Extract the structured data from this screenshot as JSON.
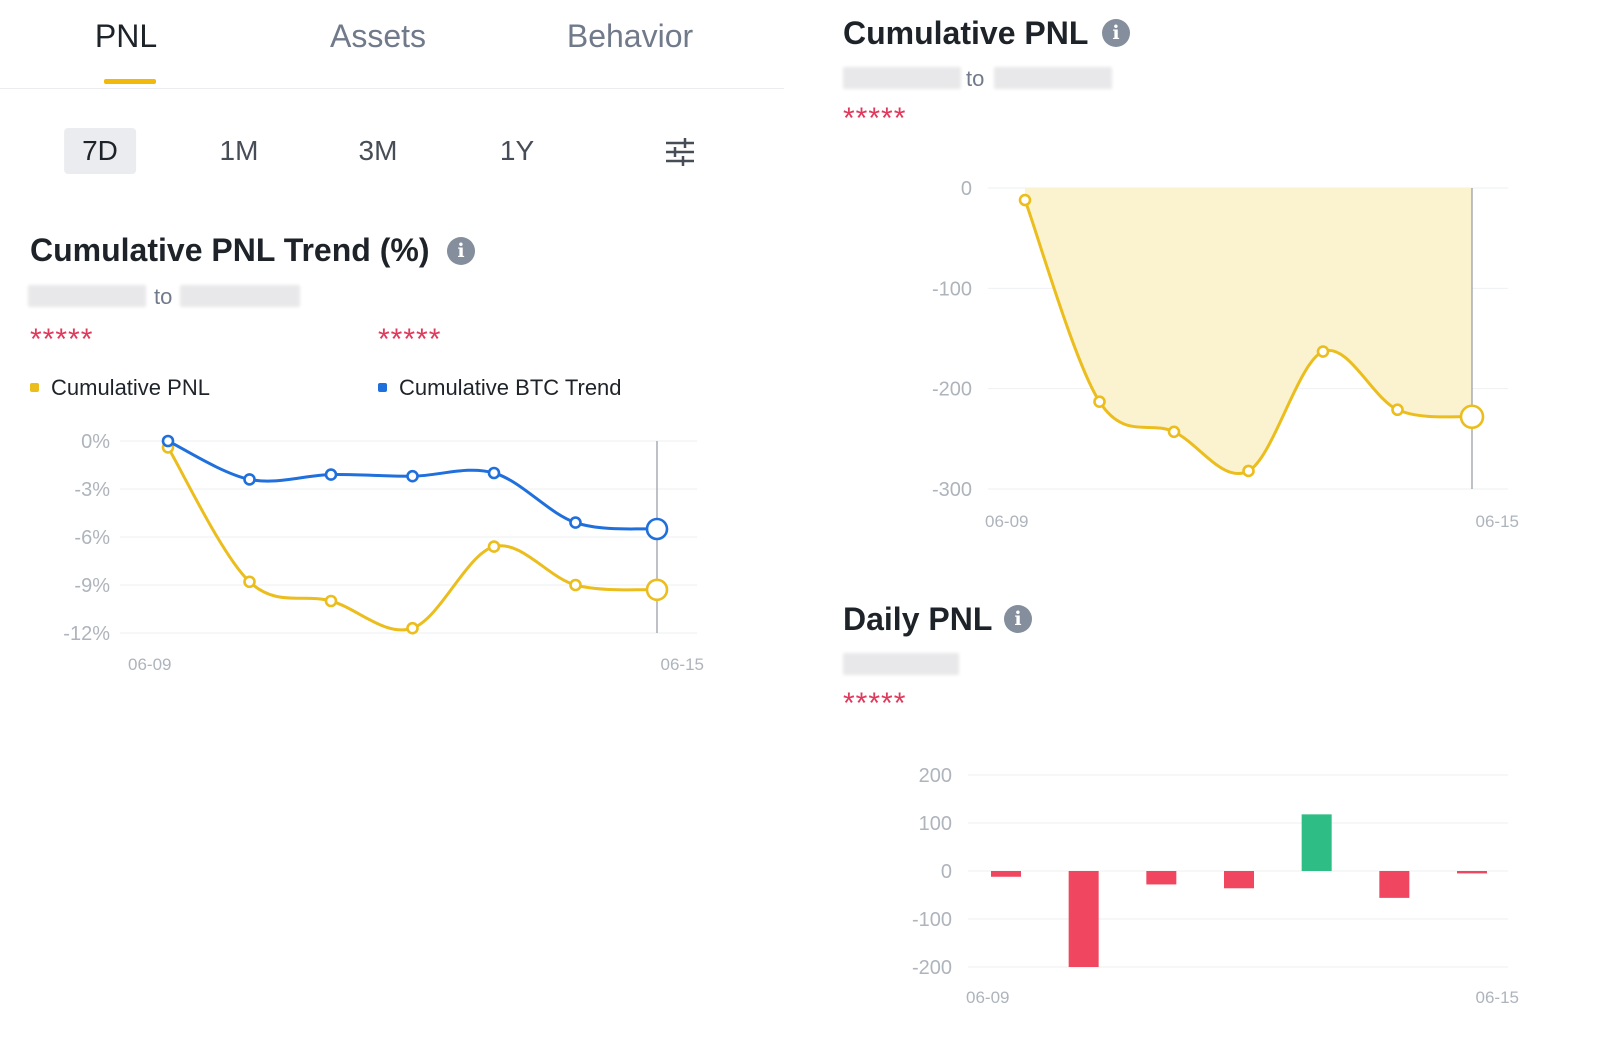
{
  "tabs": [
    {
      "label": "PNL",
      "active": true
    },
    {
      "label": "Assets",
      "active": false
    },
    {
      "label": "Behavior",
      "active": false
    }
  ],
  "periods": [
    {
      "label": "7D",
      "active": true
    },
    {
      "label": "1M",
      "active": false
    },
    {
      "label": "3M",
      "active": false
    },
    {
      "label": "1Y",
      "active": false
    }
  ],
  "colors": {
    "accent": "#f0b90b",
    "pnl_line": "#ebbd1d",
    "btc_line": "#1f6fdc",
    "area_fill": "#fbf2cf",
    "positive": "#2ebd85",
    "negative": "#f0465f",
    "stars": "#e0395c"
  },
  "trend": {
    "title": "Cumulative PNL Trend (%)",
    "to_label": "to",
    "pnl_stars": "*****",
    "btc_stars": "*****",
    "legend_pnl": "Cumulative PNL",
    "legend_btc": "Cumulative BTC Trend"
  },
  "cumulative": {
    "title": "Cumulative PNL",
    "to_label": "to",
    "stars": "*****"
  },
  "daily": {
    "title": "Daily PNL",
    "stars": "*****"
  },
  "chart_data": [
    {
      "type": "line",
      "title": "Cumulative PNL Trend (%)",
      "x": [
        "06-09",
        "06-10",
        "06-11",
        "06-12",
        "06-13",
        "06-14",
        "06-15"
      ],
      "x_tick_labels": [
        "06-09",
        "06-15"
      ],
      "y_ticks": [
        0,
        -3,
        -6,
        -9,
        -12
      ],
      "y_tick_labels": [
        "0%",
        "-3%",
        "-6%",
        "-9%",
        "-12%"
      ],
      "ylim": [
        -12,
        0
      ],
      "grid": true,
      "legend_position": "top-left",
      "series": [
        {
          "name": "Cumulative PNL",
          "values": [
            -0.4,
            -8.8,
            -10.0,
            -11.7,
            -6.6,
            -9.0,
            -9.3
          ]
        },
        {
          "name": "Cumulative BTC Trend",
          "values": [
            0.0,
            -2.4,
            -2.1,
            -2.2,
            -2.0,
            -5.1,
            -5.5
          ]
        }
      ]
    },
    {
      "type": "area",
      "title": "Cumulative PNL",
      "x": [
        "06-09",
        "06-10",
        "06-11",
        "06-12",
        "06-13",
        "06-14",
        "06-15"
      ],
      "x_tick_labels": [
        "06-09",
        "06-15"
      ],
      "y_ticks": [
        0,
        -100,
        -200,
        -300
      ],
      "y_tick_labels": [
        "0",
        "-100",
        "-200",
        "-300"
      ],
      "ylim": [
        -300,
        0
      ],
      "grid": true,
      "series": [
        {
          "values": [
            -12,
            -213,
            -243,
            -282,
            -163,
            -221,
            -228
          ]
        }
      ]
    },
    {
      "type": "bar",
      "title": "Daily PNL",
      "categories": [
        "06-09",
        "06-10",
        "06-11",
        "06-12",
        "06-13",
        "06-14",
        "06-15"
      ],
      "x_tick_labels": [
        "06-09",
        "06-15"
      ],
      "y_ticks": [
        200,
        100,
        0,
        -100,
        -200
      ],
      "y_tick_labels": [
        "200",
        "100",
        "0",
        "-100",
        "-200"
      ],
      "ylim": [
        -200,
        200
      ],
      "grid": true,
      "values": [
        -12,
        -200,
        -28,
        -36,
        118,
        -56,
        -5
      ]
    }
  ]
}
